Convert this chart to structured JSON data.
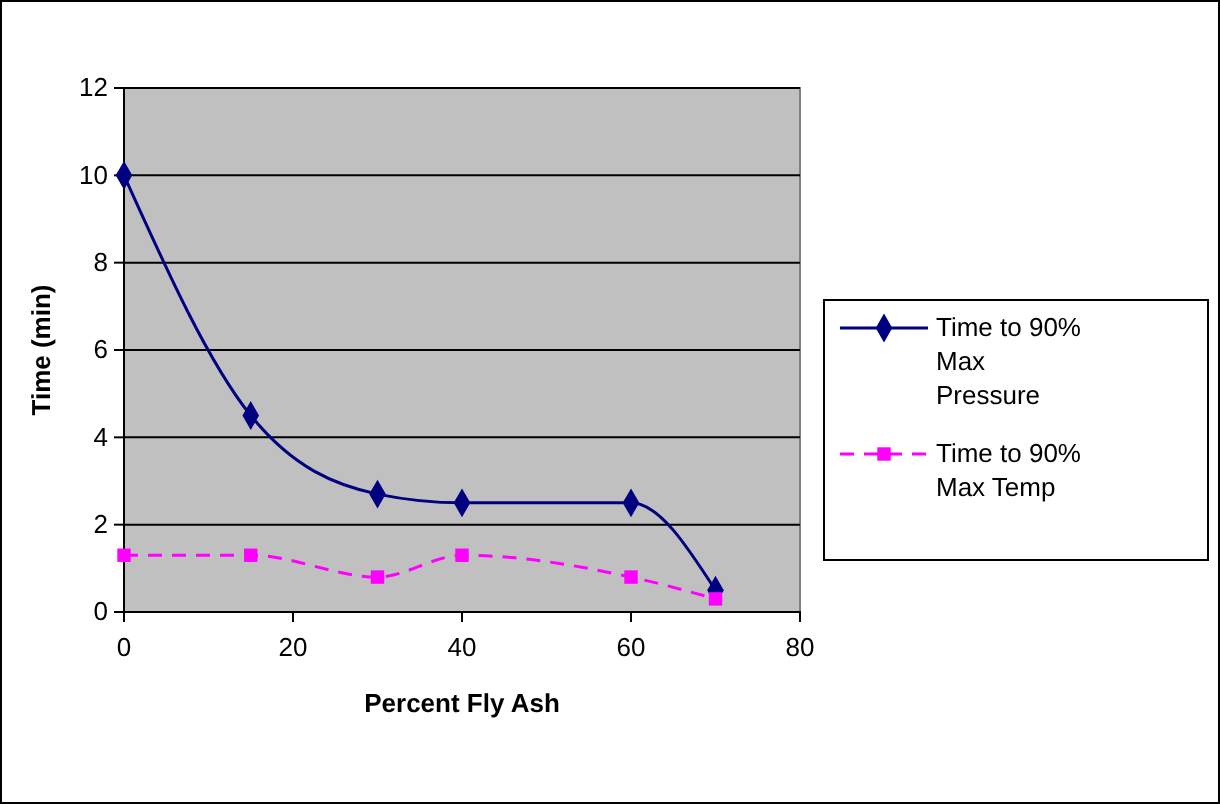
{
  "chart_data": {
    "type": "line",
    "xlabel": "Percent Fly Ash",
    "ylabel": "Time (min)",
    "x": [
      0,
      15,
      30,
      40,
      60,
      70
    ],
    "series": [
      {
        "name": "Time to 90% Max Pressure",
        "color": "#000080",
        "values": [
          10,
          4.5,
          2.7,
          2.5,
          2.5,
          0.5
        ],
        "marker": "diamond",
        "line_style": "solid"
      },
      {
        "name": "Time to 90% Max Temp",
        "color": "#ff00ff",
        "values": [
          1.3,
          1.3,
          0.8,
          1.3,
          0.8,
          0.3
        ],
        "marker": "square",
        "line_style": "dashed"
      }
    ],
    "xlim": [
      0,
      80
    ],
    "xticks": [
      0,
      20,
      40,
      60,
      80
    ],
    "ylim": [
      0,
      12
    ],
    "yticks": [
      0,
      2,
      4,
      6,
      8,
      10,
      12
    ],
    "grid": "y",
    "legend": "right"
  }
}
